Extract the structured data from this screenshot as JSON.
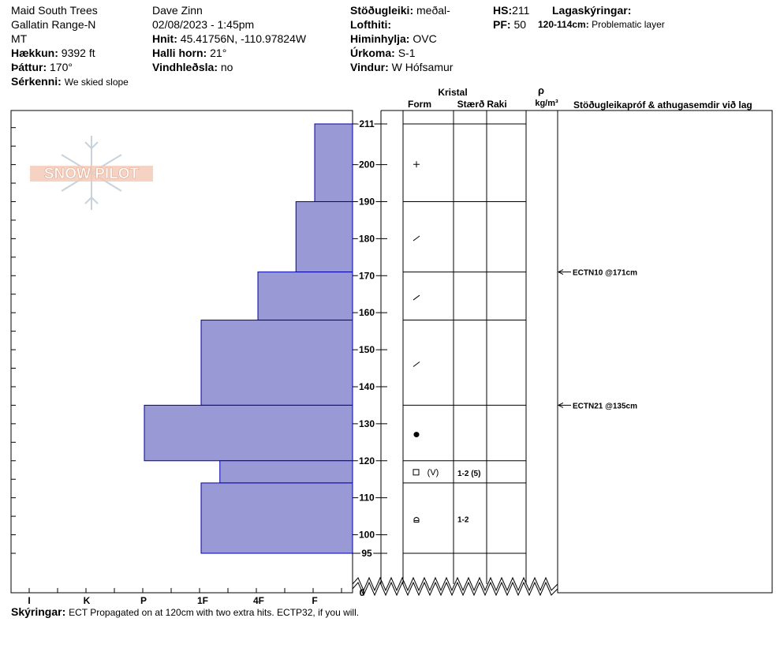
{
  "header": {
    "location": "Maid South Trees",
    "range": "Gallatin Range-N",
    "state": "MT",
    "elevation_label": "Hækkun:",
    "elevation": "9392 ft",
    "aspect_label": "Þáttur:",
    "aspect": "170°",
    "features_label": "Sérkenni:",
    "features": "We skied slope",
    "observer": "Dave Zinn",
    "datetime": "02/08/2023 - 1:45pm",
    "coords_label": "Hnit:",
    "coords": "45.41756N, -110.97824W",
    "slope_label": "Halli horn:",
    "slope": "21°",
    "wind_loading_label": "Vindhleðsla:",
    "wind_loading": "no",
    "stability_label": "Stöðugleiki:",
    "stability": "meðal-",
    "air_temp_label": "Lofthiti:",
    "air_temp": "",
    "sky_label": "Himinhylja:",
    "sky": "OVC",
    "precip_label": "Úrkoma:",
    "precip": "S-1",
    "wind_label": "Vindur:",
    "wind": "W Hófsamur",
    "hs_label": "HS:",
    "hs": "211",
    "pf_label": "PF:",
    "pf": "50",
    "layer_notes_label": "Lagaskýringar:",
    "layer_note_range": "120-114cm:",
    "layer_note_text": "Problematic layer"
  },
  "logo": {
    "text": "SNOW PILOT"
  },
  "columns": {
    "crystal": "Kristal",
    "form": "Form",
    "size": "Stærð",
    "moisture": "Raki",
    "density_symbol": "ρ",
    "density_unit": "kg/m³",
    "tests_header": "Stöðugleikapróf & athugasemdir við lag"
  },
  "footer": {
    "comments_label": "Skýringar:",
    "comments": "ECT Propagated on at 120cm with two extra hits. ECTP32, if you will."
  },
  "colors": {
    "bar_fill": "#9999d6",
    "bar_stroke": "#0000aa"
  },
  "chart_data": {
    "type": "bar",
    "orientation": "horizontal",
    "ylabel": "",
    "y_ticks": [
      95,
      100,
      110,
      120,
      130,
      140,
      150,
      160,
      170,
      180,
      190,
      200,
      211
    ],
    "y_zero_label": "0",
    "hardness_scale": [
      "I",
      "K",
      "P",
      "1F",
      "4F",
      "F"
    ],
    "layers": [
      {
        "top": 211,
        "bottom": 190,
        "hardness": "F"
      },
      {
        "top": 190,
        "bottom": 171,
        "hardness": "F+"
      },
      {
        "top": 171,
        "bottom": 158,
        "hardness": "4F"
      },
      {
        "top": 158,
        "bottom": 135,
        "hardness": "1F"
      },
      {
        "top": 135,
        "bottom": 120,
        "hardness": "P"
      },
      {
        "top": 120,
        "bottom": 114,
        "hardness": "1F+"
      },
      {
        "top": 114,
        "bottom": 95,
        "hardness": "1F"
      }
    ],
    "hardness_value": {
      "F": 1,
      "F+": 1.33,
      "4F": 2,
      "1F": 3,
      "1F+": 2.67,
      "P": 4
    },
    "grain_rows": [
      {
        "top": 211,
        "bottom": 190,
        "form": "plus",
        "size": ""
      },
      {
        "top": 190,
        "bottom": 171,
        "form": "slash",
        "size": ""
      },
      {
        "top": 171,
        "bottom": 158,
        "form": "slash",
        "size": ""
      },
      {
        "top": 158,
        "bottom": 135,
        "form": "slash",
        "size": ""
      },
      {
        "top": 135,
        "bottom": 120,
        "form": "dot",
        "size": ""
      },
      {
        "top": 120,
        "bottom": 114,
        "form": "square",
        "form_secondary": "(V)",
        "size": "1-2 (5)"
      },
      {
        "top": 114,
        "bottom": 95,
        "form": "faceted",
        "size": "1-2"
      }
    ],
    "tests": [
      {
        "depth": 171,
        "label": "ECTN10 @171cm"
      },
      {
        "depth": 135,
        "label": "ECTN21 @135cm"
      }
    ]
  }
}
